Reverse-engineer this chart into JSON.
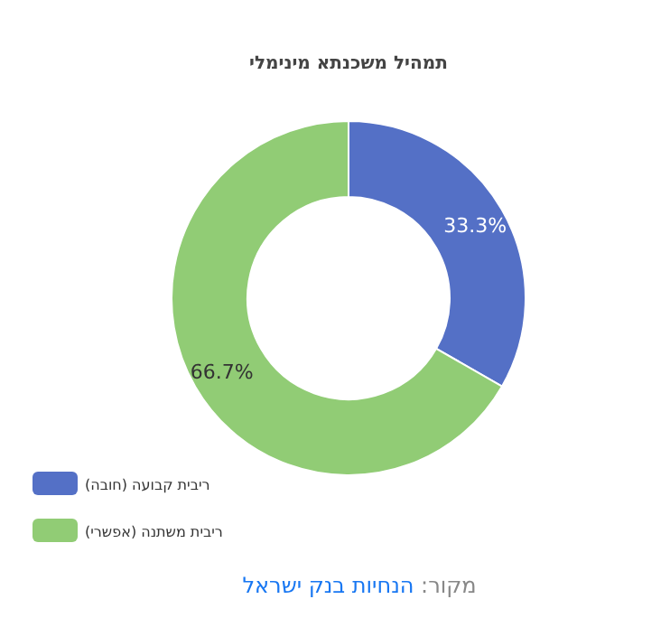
{
  "chart_data": {
    "type": "donut",
    "title": "תמהיל משכנתא מינימלי",
    "categories": [
      "ריבית קבועה (חובה)",
      "ריבית משתנה (אפשרי)"
    ],
    "values": [
      33.3,
      66.7
    ],
    "value_labels": [
      "33.3%",
      "66.7%"
    ],
    "colors": [
      "#5470c6",
      "#91cc75"
    ],
    "legend": "bottom left",
    "annotations": [
      "מקור:",
      "הנחיות בנק ישראל"
    ]
  }
}
